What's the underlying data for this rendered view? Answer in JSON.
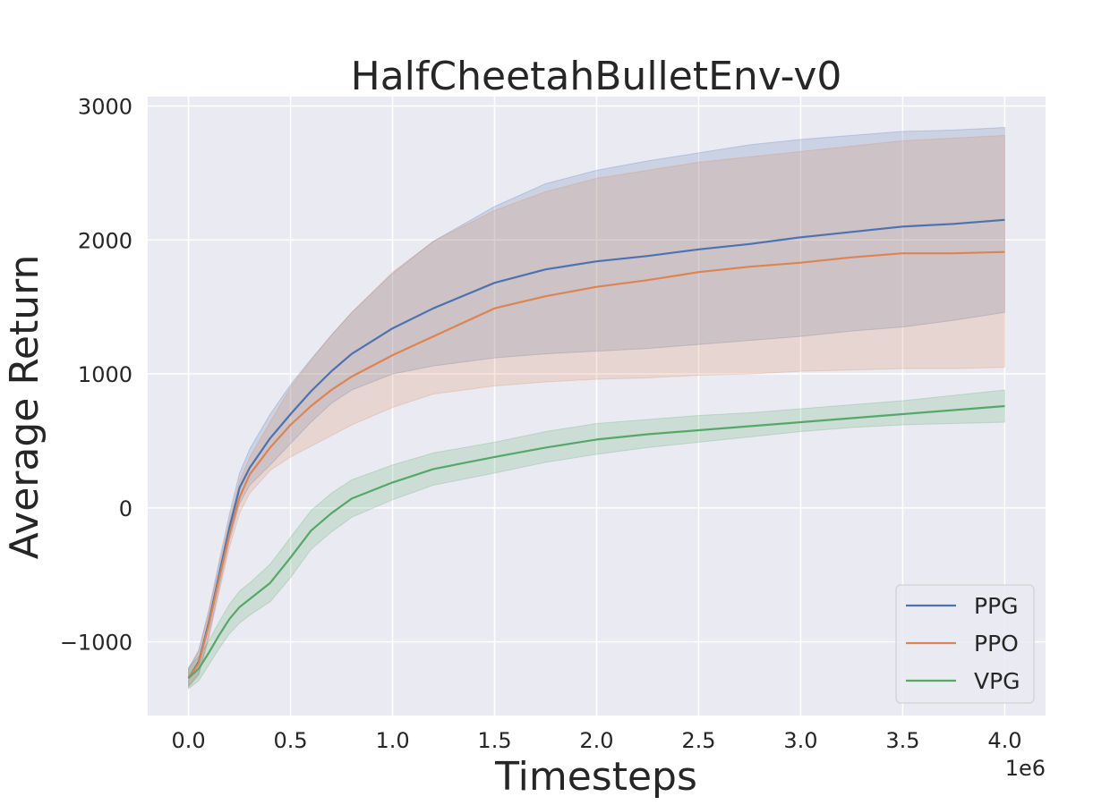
{
  "chart_data": {
    "type": "line",
    "title": "HalfCheetahBulletEnv-v0",
    "xlabel": "Timesteps",
    "ylabel": "Average Return",
    "x_offset_label": "1e6",
    "xlim": [
      -0.2,
      4.2
    ],
    "ylim": [
      -1550,
      3070
    ],
    "xticks": [
      0.0,
      0.5,
      1.0,
      1.5,
      2.0,
      2.5,
      3.0,
      3.5,
      4.0
    ],
    "xtick_labels": [
      "0.0",
      "0.5",
      "1.0",
      "1.5",
      "2.0",
      "2.5",
      "3.0",
      "3.5",
      "4.0"
    ],
    "yticks": [
      -1000,
      0,
      1000,
      2000,
      3000
    ],
    "ytick_labels": [
      "−1000",
      "0",
      "1000",
      "2000",
      "3000"
    ],
    "grid": true,
    "legend_position": "lower-right",
    "x": [
      0.0,
      0.05,
      0.1,
      0.15,
      0.2,
      0.25,
      0.3,
      0.4,
      0.5,
      0.6,
      0.7,
      0.8,
      1.0,
      1.2,
      1.5,
      1.75,
      2.0,
      2.25,
      2.5,
      2.75,
      3.0,
      3.25,
      3.5,
      3.75,
      4.0
    ],
    "series": [
      {
        "name": "PPG",
        "color": "#4c72b0",
        "values": [
          -1270,
          -1150,
          -850,
          -500,
          -150,
          150,
          300,
          520,
          700,
          870,
          1020,
          1150,
          1340,
          1490,
          1680,
          1780,
          1840,
          1880,
          1930,
          1970,
          2020,
          2060,
          2100,
          2120,
          2150
        ],
        "lower": [
          -1330,
          -1240,
          -950,
          -600,
          -250,
          30,
          170,
          320,
          480,
          640,
          780,
          880,
          1000,
          1060,
          1120,
          1150,
          1170,
          1190,
          1220,
          1250,
          1280,
          1320,
          1350,
          1400,
          1460
        ],
        "upper": [
          -1200,
          -1060,
          -760,
          -400,
          -50,
          260,
          440,
          700,
          920,
          1110,
          1290,
          1460,
          1750,
          1990,
          2250,
          2420,
          2520,
          2590,
          2650,
          2710,
          2750,
          2780,
          2810,
          2820,
          2840
        ]
      },
      {
        "name": "PPO",
        "color": "#dd8452",
        "values": [
          -1270,
          -1160,
          -870,
          -530,
          -200,
          80,
          250,
          450,
          620,
          760,
          880,
          980,
          1140,
          1280,
          1490,
          1580,
          1650,
          1700,
          1760,
          1800,
          1830,
          1870,
          1900,
          1900,
          1910
        ],
        "lower": [
          -1340,
          -1250,
          -970,
          -630,
          -300,
          -40,
          110,
          280,
          380,
          460,
          540,
          620,
          750,
          850,
          910,
          940,
          960,
          970,
          990,
          1000,
          1020,
          1030,
          1040,
          1040,
          1050
        ],
        "upper": [
          -1200,
          -1070,
          -770,
          -430,
          -100,
          200,
          380,
          640,
          900,
          1100,
          1290,
          1460,
          1760,
          1990,
          2220,
          2360,
          2460,
          2520,
          2580,
          2620,
          2660,
          2700,
          2740,
          2760,
          2780
        ]
      },
      {
        "name": "VPG",
        "color": "#55a868",
        "values": [
          -1270,
          -1200,
          -1080,
          -950,
          -830,
          -740,
          -680,
          -560,
          -370,
          -170,
          -40,
          70,
          190,
          290,
          380,
          450,
          510,
          550,
          580,
          610,
          640,
          670,
          700,
          730,
          760
        ],
        "lower": [
          -1350,
          -1290,
          -1170,
          -1050,
          -940,
          -860,
          -800,
          -700,
          -520,
          -310,
          -180,
          -70,
          60,
          170,
          260,
          340,
          400,
          450,
          490,
          530,
          570,
          600,
          620,
          630,
          640
        ],
        "upper": [
          -1190,
          -1110,
          -990,
          -850,
          -720,
          -620,
          -560,
          -420,
          -220,
          -20,
          110,
          210,
          320,
          410,
          490,
          570,
          630,
          660,
          690,
          710,
          740,
          770,
          800,
          840,
          880
        ]
      }
    ]
  }
}
